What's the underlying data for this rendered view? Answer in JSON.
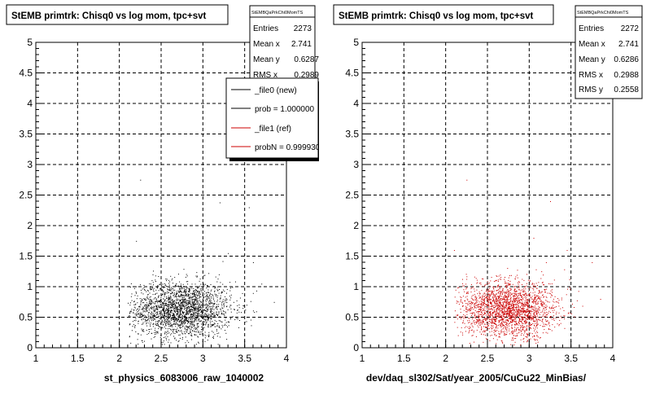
{
  "footer_text": "",
  "panels": [
    {
      "title": "StEMB primtrk: Chisq0 vs log mom, tpc+svt",
      "stats": {
        "name": "StEMBQaPrkChi0MomTS",
        "rows": [
          {
            "label": "Entries",
            "value": "2273"
          },
          {
            "label": "Mean x",
            "value": "2.741"
          },
          {
            "label": "Mean y",
            "value": "0.6287"
          },
          {
            "label": "RMS x",
            "value": "0.2989"
          },
          {
            "label": "RMS y",
            "value": ""
          }
        ]
      },
      "legend": [
        {
          "label": "_file0 (new)",
          "color": "#000000"
        },
        {
          "label": "prob = 1.000000",
          "color": "#000000"
        },
        {
          "label": "_file1 (ref)",
          "color": "#cc0000"
        },
        {
          "label": "probN = 0.999930",
          "color": "#cc0000"
        }
      ],
      "xlabel": "st_physics_6083006_raw_1040002"
    },
    {
      "title": "StEMB primtrk: Chisq0 vs log mom, tpc+svt",
      "stats": {
        "name": "StEMBQaPrkChi0MomTS",
        "rows": [
          {
            "label": "Entries",
            "value": "2272"
          },
          {
            "label": "Mean x",
            "value": "2.741"
          },
          {
            "label": "Mean y",
            "value": "0.6286"
          },
          {
            "label": "RMS x",
            "value": "0.2988"
          },
          {
            "label": "RMS y",
            "value": "0.2558"
          }
        ]
      },
      "legend": [],
      "xlabel": "dev/daq_sl302/Sat/year_2005/CuCu22_MinBias/"
    }
  ],
  "chart_data": [
    {
      "type": "scatter",
      "title": "StEMB primtrk: Chisq0 vs log mom, tpc+svt",
      "xlabel": "st_physics_6083006_raw_1040002",
      "ylabel": "",
      "xlim": [
        1,
        4
      ],
      "ylim": [
        0,
        5
      ],
      "x_ticks": [
        "1",
        "1.5",
        "2",
        "2.5",
        "3",
        "3.5",
        "4"
      ],
      "y_ticks": [
        "0",
        "0.5",
        "1",
        "1.5",
        "2",
        "2.5",
        "3",
        "3.5",
        "4",
        "4.5",
        "5"
      ],
      "grid": true,
      "marker_color": "#000000",
      "distribution": {
        "entries": 2273,
        "mean_x": 2.741,
        "mean_y": 0.6287,
        "rms_x": 0.2989,
        "rms_y": 0.2558
      },
      "outliers": [
        [
          2.25,
          2.75
        ],
        [
          3.2,
          2.38
        ],
        [
          3.55,
          2.3
        ],
        [
          3.7,
          1.05
        ],
        [
          3.3,
          1.55
        ],
        [
          2.2,
          1.75
        ],
        [
          3.85,
          0.75
        ],
        [
          3.6,
          1.4
        ]
      ]
    },
    {
      "type": "scatter",
      "title": "StEMB primtrk: Chisq0 vs log mom, tpc+svt",
      "xlabel": "dev/daq_sl302/Sat/year_2005/CuCu22_MinBias/",
      "ylabel": "",
      "xlim": [
        1,
        4
      ],
      "ylim": [
        0,
        5
      ],
      "x_ticks": [
        "1",
        "1.5",
        "2",
        "2.5",
        "3",
        "3.5",
        "4"
      ],
      "y_ticks": [
        "0",
        "0.5",
        "1",
        "1.5",
        "2",
        "2.5",
        "3",
        "3.5",
        "4",
        "4.5",
        "5"
      ],
      "grid": true,
      "marker_color": "#cc0000",
      "distribution": {
        "entries": 2272,
        "mean_x": 2.741,
        "mean_y": 0.6286,
        "rms_x": 0.2988,
        "rms_y": 0.2558
      },
      "outliers": [
        [
          2.25,
          2.75
        ],
        [
          3.25,
          2.4
        ],
        [
          3.05,
          1.8
        ],
        [
          3.75,
          1.4
        ],
        [
          3.2,
          1.4
        ],
        [
          2.1,
          1.6
        ],
        [
          3.85,
          0.8
        ],
        [
          3.45,
          1.6
        ]
      ]
    }
  ]
}
